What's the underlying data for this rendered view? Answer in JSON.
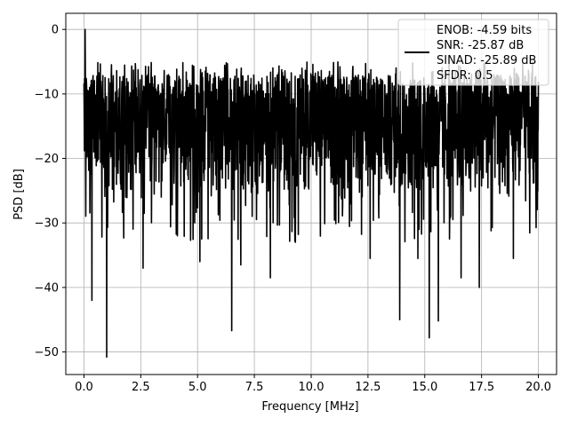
{
  "chart_data": {
    "type": "line",
    "xlabel": "Frequency [MHz]",
    "ylabel": "PSD [dB]",
    "xlim": [
      -0.8,
      20.8
    ],
    "ylim": [
      -53.5,
      2.5
    ],
    "xticks": [
      0.0,
      2.5,
      5.0,
      7.5,
      10.0,
      12.5,
      15.0,
      17.5,
      20.0
    ],
    "xtick_labels": [
      "0.0",
      "2.5",
      "5.0",
      "7.5",
      "10.0",
      "12.5",
      "15.0",
      "17.5",
      "20.0"
    ],
    "yticks": [
      0,
      -10,
      -20,
      -30,
      -40,
      -50
    ],
    "ytick_labels": [
      "0",
      "−10",
      "−20",
      "−30",
      "−40",
      "−50"
    ],
    "grid": true,
    "legend_position": "top-right",
    "series": [
      {
        "name_lines": [
          "ENOB: -4.59 bits",
          "SNR: -25.87 dB",
          "SINAD: -25.89 dB",
          "SFDR: 0.5"
        ],
        "color": "#000000",
        "x_range": [
          0.0,
          20.0
        ],
        "num_points": 2000,
        "upper_envelope_db": -7,
        "lower_envelope_db": -25,
        "peak": {
          "x": 0.05,
          "y": 0.0
        },
        "notable_dips": [
          {
            "x": 0.35,
            "y": -42.0
          },
          {
            "x": 1.0,
            "y": -50.8
          },
          {
            "x": 2.6,
            "y": -37.0
          },
          {
            "x": 5.1,
            "y": -36.0
          },
          {
            "x": 6.5,
            "y": -46.7
          },
          {
            "x": 6.9,
            "y": -36.5
          },
          {
            "x": 8.2,
            "y": -38.5
          },
          {
            "x": 9.3,
            "y": -33.0
          },
          {
            "x": 12.6,
            "y": -35.5
          },
          {
            "x": 13.9,
            "y": -45.0
          },
          {
            "x": 14.7,
            "y": -35.5
          },
          {
            "x": 15.2,
            "y": -47.8
          },
          {
            "x": 15.6,
            "y": -45.2
          },
          {
            "x": 16.6,
            "y": -38.5
          },
          {
            "x": 17.4,
            "y": -40.0
          },
          {
            "x": 18.9,
            "y": -35.5
          }
        ]
      }
    ]
  }
}
